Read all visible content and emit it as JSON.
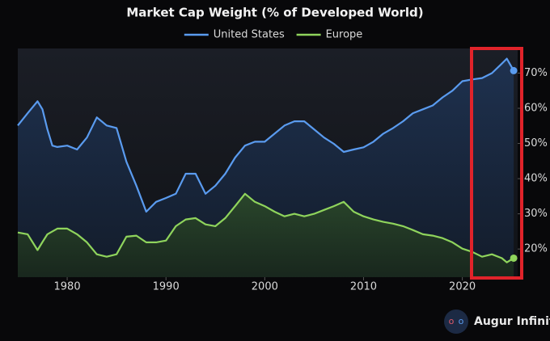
{
  "chart_data": {
    "type": "line",
    "title": "Market Cap Weight (% of Developed World)",
    "x": [
      1975,
      1976,
      1977,
      1977.5,
      1978,
      1978.5,
      1979,
      1980,
      1981,
      1982,
      1983,
      1984,
      1985,
      1986,
      1987,
      1988,
      1989,
      1990,
      1991,
      1992,
      1993,
      1994,
      1995,
      1996,
      1997,
      1998,
      1999,
      2000,
      2001,
      2002,
      2003,
      2004,
      2005,
      2006,
      2007,
      2008,
      2009,
      2010,
      2011,
      2012,
      2013,
      2014,
      2015,
      2016,
      2017,
      2018,
      2019,
      2020,
      2021,
      2022,
      2023,
      2024,
      2024.5,
      2025.2
    ],
    "series": [
      {
        "name": "United States",
        "color": "#5a9bef",
        "values": [
          55.1,
          58.6,
          62,
          59.7,
          54,
          49.4,
          49,
          49.4,
          48.3,
          51.7,
          57.4,
          55.1,
          54.4,
          44.8,
          38,
          30.6,
          33.4,
          34.5,
          35.7,
          41.4,
          41.4,
          35.7,
          38,
          41.4,
          46,
          49.4,
          50.5,
          50.5,
          52.8,
          55.1,
          56.3,
          56.3,
          54,
          51.7,
          49.9,
          47.6,
          48.3,
          48.9,
          50.5,
          52.8,
          54.4,
          56.3,
          58.6,
          59.7,
          60.8,
          63.1,
          65,
          67.7,
          68.2,
          68.6,
          70,
          72.7,
          74.1,
          70.7
        ]
      },
      {
        "name": "Europe",
        "color": "#8fd45c",
        "values": [
          24.7,
          24.2,
          19.7,
          22,
          24.2,
          25,
          25.8,
          25.8,
          24.2,
          21.9,
          18.5,
          17.8,
          18.5,
          23.5,
          23.8,
          21.9,
          21.9,
          22.4,
          26.5,
          28.4,
          28.8,
          27,
          26.5,
          28.8,
          32.2,
          35.7,
          33.4,
          32.2,
          30.6,
          29.3,
          30,
          29.3,
          30,
          31.1,
          32.2,
          33.4,
          30.6,
          29.3,
          28.4,
          27.7,
          27.2,
          26.5,
          25.4,
          24.2,
          23.8,
          23.1,
          21.9,
          20.1,
          19.2,
          17.8,
          18.5,
          17.4,
          16.2,
          17.4
        ]
      }
    ],
    "xlim": [
      1975,
      2025.6
    ],
    "xticks": [
      1980,
      1990,
      2000,
      2010,
      2020
    ],
    "ylim": [
      12,
      77
    ],
    "yticks": [
      {
        "value": 20,
        "label": "20%"
      },
      {
        "value": 30,
        "label": "30%"
      },
      {
        "value": 40,
        "label": "40%"
      },
      {
        "value": 50,
        "label": "50%"
      },
      {
        "value": 60,
        "label": "60%"
      },
      {
        "value": 70,
        "label": "70%"
      }
    ],
    "legend": "top",
    "source": "Augur Infinity"
  }
}
